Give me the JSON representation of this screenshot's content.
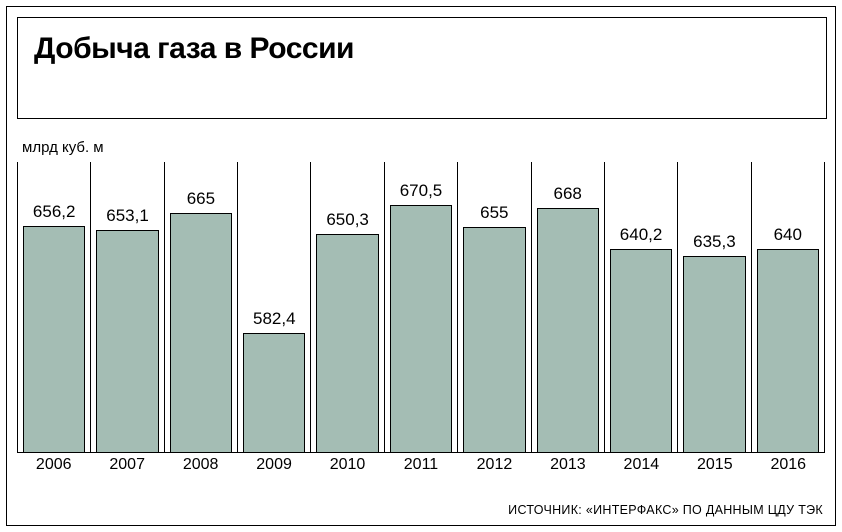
{
  "title": "Добыча газа в России",
  "y_axis_label": "млрд куб. м",
  "source": "ИСТОЧНИК: «ИНТЕРФАКС» ПО ДАННЫМ ЦДУ ТЭК",
  "chart": {
    "type": "bar",
    "bar_color": "#a4bdb4",
    "bar_border_color": "#000000",
    "background_color": "#ffffff",
    "grid_color": "#000000",
    "title_fontsize": 30,
    "title_fontweight": 900,
    "value_label_fontsize": 17,
    "x_label_fontsize": 16,
    "y_label_fontsize": 15,
    "source_fontsize": 12.5,
    "baseline_value": 500,
    "max_display_value": 700,
    "categories": [
      "2006",
      "2007",
      "2008",
      "2009",
      "2010",
      "2011",
      "2012",
      "2013",
      "2014",
      "2015",
      "2016"
    ],
    "values": [
      656.2,
      653.1,
      665,
      582.4,
      650.3,
      670.5,
      655,
      668,
      640.2,
      635.3,
      640
    ],
    "value_labels": [
      "656,2",
      "653,1",
      "665",
      "582,4",
      "650,3",
      "670,5",
      "655",
      "668",
      "640,2",
      "635,3",
      "640"
    ]
  }
}
